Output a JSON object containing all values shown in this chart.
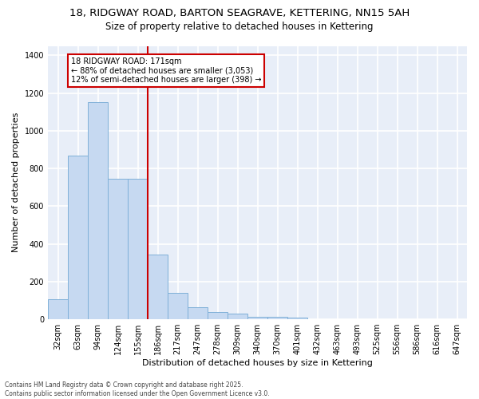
{
  "title_line1": "18, RIDGWAY ROAD, BARTON SEAGRAVE, KETTERING, NN15 5AH",
  "title_line2": "Size of property relative to detached houses in Kettering",
  "xlabel": "Distribution of detached houses by size in Kettering",
  "ylabel": "Number of detached properties",
  "bar_color": "#c6d9f1",
  "bar_edge_color": "#7fb0d8",
  "background_color": "#e8eef8",
  "grid_color": "#ffffff",
  "categories": [
    "32sqm",
    "63sqm",
    "94sqm",
    "124sqm",
    "155sqm",
    "186sqm",
    "217sqm",
    "247sqm",
    "278sqm",
    "309sqm",
    "340sqm",
    "370sqm",
    "401sqm",
    "432sqm",
    "463sqm",
    "493sqm",
    "525sqm",
    "556sqm",
    "586sqm",
    "616sqm",
    "647sqm"
  ],
  "values": [
    107,
    868,
    1150,
    745,
    745,
    345,
    140,
    65,
    38,
    28,
    15,
    15,
    8,
    0,
    0,
    0,
    0,
    0,
    0,
    0,
    0
  ],
  "vline_x": 4.5,
  "vline_color": "#cc0000",
  "annotation_text": "18 RIDGWAY ROAD: 171sqm\n← 88% of detached houses are smaller (3,053)\n12% of semi-detached houses are larger (398) →",
  "annotation_box_color": "#cc0000",
  "ylim": [
    0,
    1450
  ],
  "yticks": [
    0,
    200,
    400,
    600,
    800,
    1000,
    1200,
    1400
  ],
  "footnote": "Contains HM Land Registry data © Crown copyright and database right 2025.\nContains public sector information licensed under the Open Government Licence v3.0.",
  "title_fontsize": 9.5,
  "subtitle_fontsize": 8.5,
  "tick_fontsize": 7,
  "label_fontsize": 8,
  "footnote_fontsize": 5.5
}
